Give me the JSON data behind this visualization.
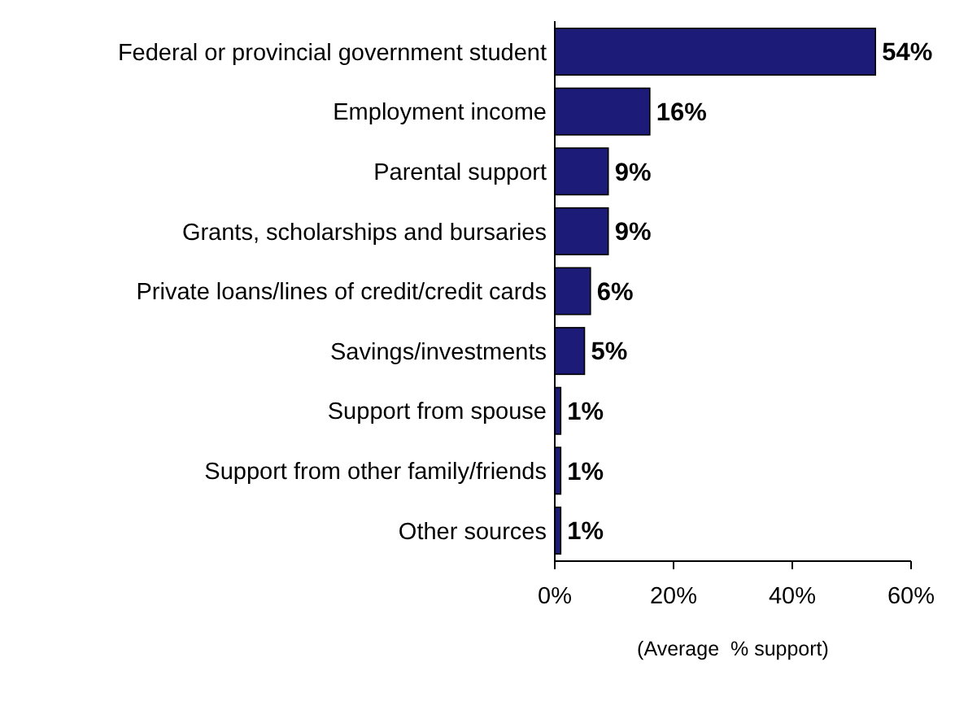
{
  "chart_data": {
    "type": "bar",
    "orientation": "horizontal",
    "xlabel": "(Average  % support)",
    "categories": [
      "Federal or provincial government student",
      "Employment income",
      "Parental support",
      "Grants, scholarships and bursaries",
      "Private loans/lines of credit/credit cards",
      "Savings/investments",
      "Support from spouse",
      "Support from other family/friends",
      "Other sources"
    ],
    "values": [
      54,
      16,
      9,
      9,
      6,
      5,
      1,
      1,
      1
    ],
    "value_labels": [
      "54%",
      "16%",
      "9%",
      "9%",
      "6%",
      "5%",
      "1%",
      "1%",
      "1%"
    ],
    "color": "#1c1c78",
    "xlim": [
      0,
      60
    ],
    "xticks": [
      {
        "value": 0,
        "label": "0%"
      },
      {
        "value": 20,
        "label": "20%"
      },
      {
        "value": 40,
        "label": "40%"
      },
      {
        "value": 60,
        "label": "60%"
      }
    ],
    "grid": false
  }
}
